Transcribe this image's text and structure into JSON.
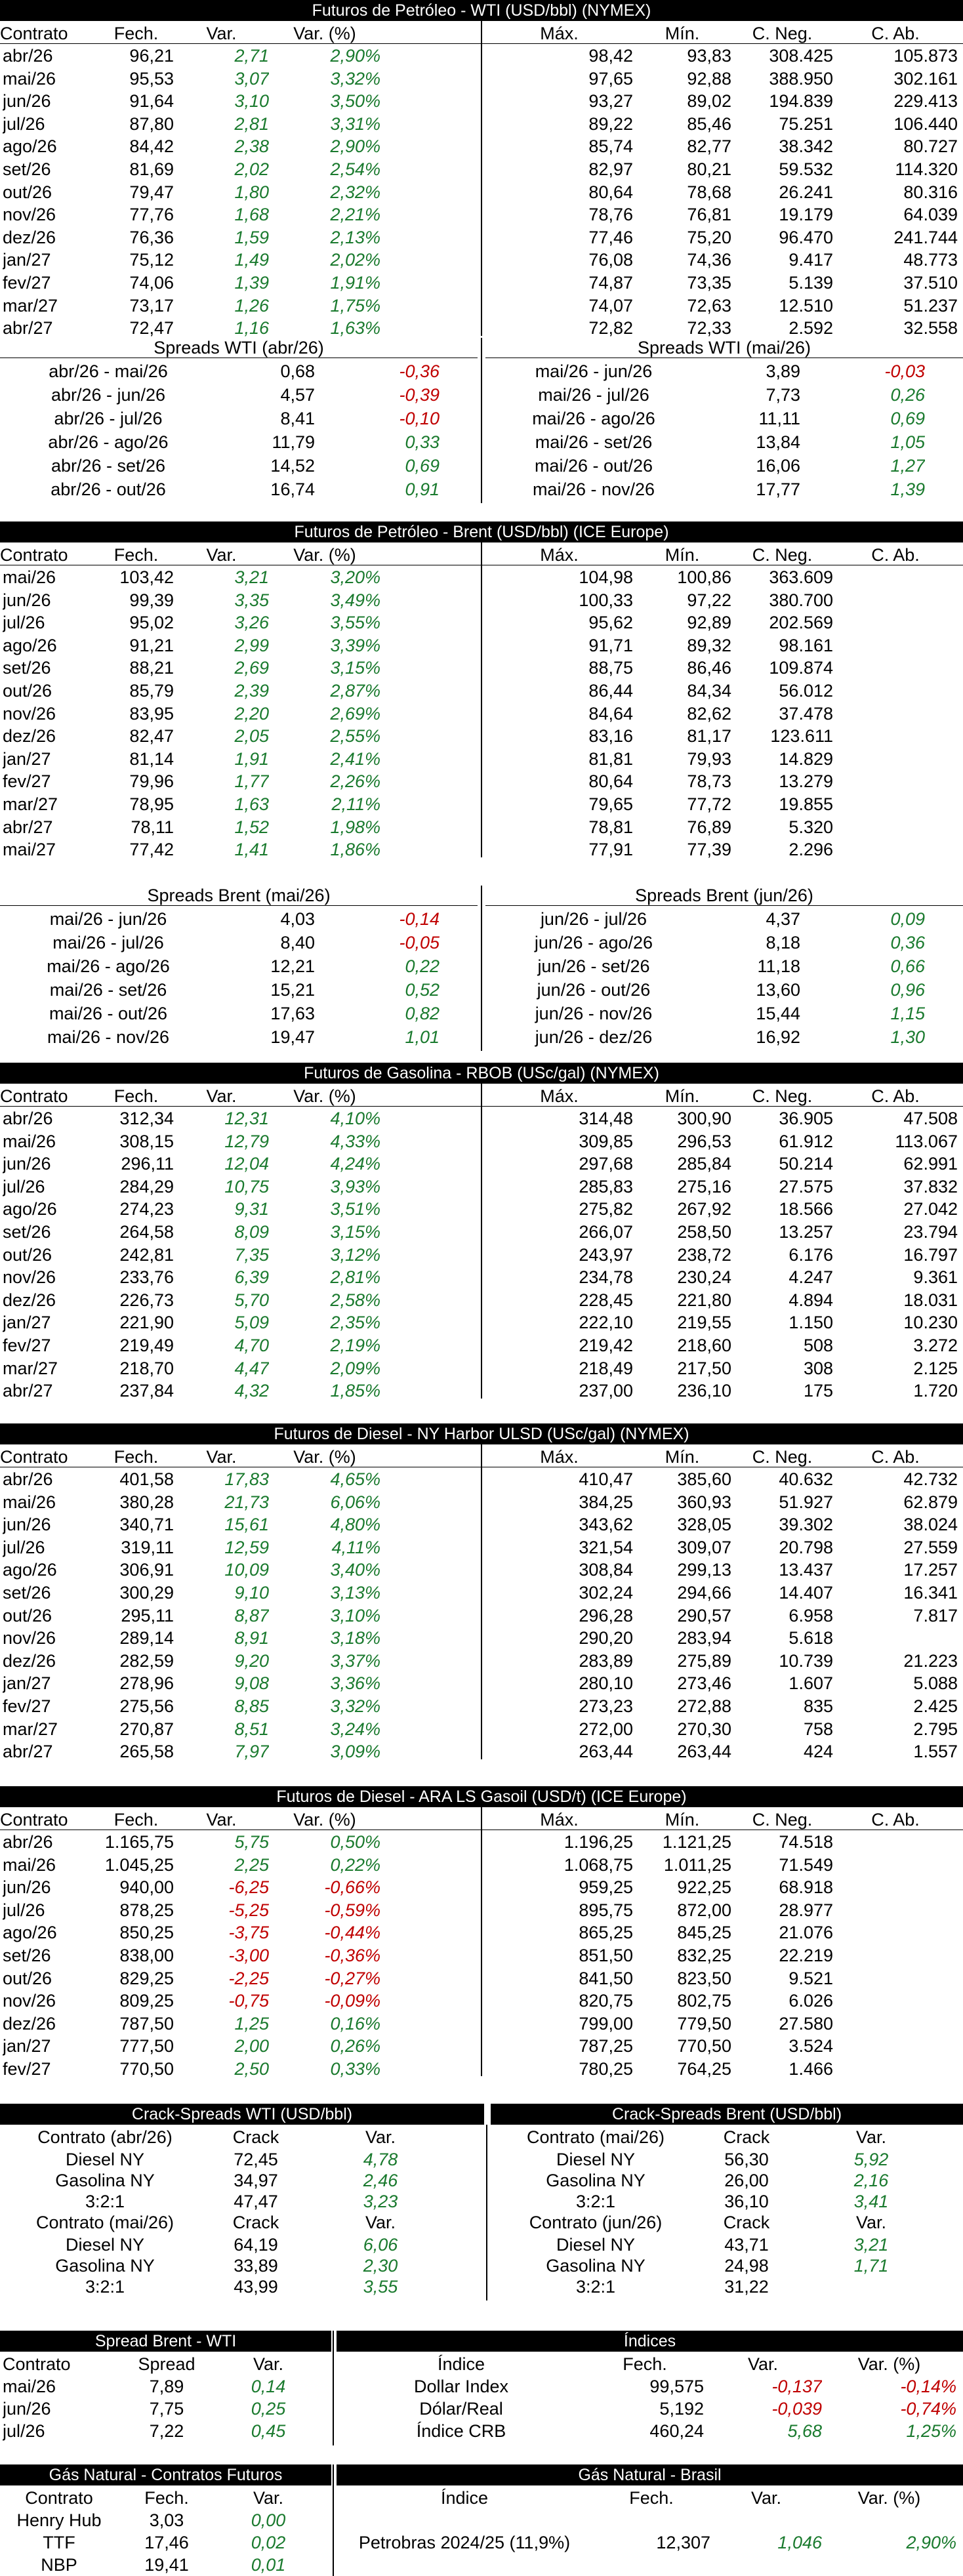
{
  "colors": {
    "up": "#1a7a2e",
    "down": "#c00000",
    "header_bg": "#000000"
  },
  "wti": {
    "title": "Futuros de Petróleo - WTI (USD/bbl) (NYMEX)",
    "headers": [
      "Contrato",
      "Fech.",
      "Var.",
      "Var. (%)",
      "Máx.",
      "Mín.",
      "C. Neg.",
      "C. Ab."
    ],
    "rows": [
      [
        "abr/26",
        "96,21",
        "2,71",
        "2,90%",
        "98,42",
        "93,83",
        "308.425",
        "105.873"
      ],
      [
        "mai/26",
        "95,53",
        "3,07",
        "3,32%",
        "97,65",
        "92,88",
        "388.950",
        "302.161"
      ],
      [
        "jun/26",
        "91,64",
        "3,10",
        "3,50%",
        "93,27",
        "89,02",
        "194.839",
        "229.413"
      ],
      [
        "jul/26",
        "87,80",
        "2,81",
        "3,31%",
        "89,22",
        "85,46",
        "75.251",
        "106.440"
      ],
      [
        "ago/26",
        "84,42",
        "2,38",
        "2,90%",
        "85,74",
        "82,77",
        "38.342",
        "80.727"
      ],
      [
        "set/26",
        "81,69",
        "2,02",
        "2,54%",
        "82,97",
        "80,21",
        "59.532",
        "114.320"
      ],
      [
        "out/26",
        "79,47",
        "1,80",
        "2,32%",
        "80,64",
        "78,68",
        "26.241",
        "80.316"
      ],
      [
        "nov/26",
        "77,76",
        "1,68",
        "2,21%",
        "78,76",
        "76,81",
        "19.179",
        "64.039"
      ],
      [
        "dez/26",
        "76,36",
        "1,59",
        "2,13%",
        "77,46",
        "75,20",
        "96.470",
        "241.744"
      ],
      [
        "jan/27",
        "75,12",
        "1,49",
        "2,02%",
        "76,08",
        "74,36",
        "9.417",
        "48.773"
      ],
      [
        "fev/27",
        "74,06",
        "1,39",
        "1,91%",
        "74,87",
        "73,35",
        "5.139",
        "37.510"
      ],
      [
        "mar/27",
        "73,17",
        "1,26",
        "1,75%",
        "74,07",
        "72,63",
        "12.510",
        "51.237"
      ],
      [
        "abr/27",
        "72,47",
        "1,16",
        "1,63%",
        "72,82",
        "72,33",
        "2.592",
        "32.558"
      ]
    ],
    "spreads_left": {
      "title": "Spreads WTI (abr/26)",
      "rows": [
        [
          "abr/26 - mai/26",
          "0,68",
          "-0,36"
        ],
        [
          "abr/26 - jun/26",
          "4,57",
          "-0,39"
        ],
        [
          "abr/26 - jul/26",
          "8,41",
          "-0,10"
        ],
        [
          "abr/26 - ago/26",
          "11,79",
          "0,33"
        ],
        [
          "abr/26 - set/26",
          "14,52",
          "0,69"
        ],
        [
          "abr/26 - out/26",
          "16,74",
          "0,91"
        ]
      ]
    },
    "spreads_right": {
      "title": "Spreads WTI (mai/26)",
      "rows": [
        [
          "mai/26 - jun/26",
          "3,89",
          "-0,03"
        ],
        [
          "mai/26 - jul/26",
          "7,73",
          "0,26"
        ],
        [
          "mai/26 - ago/26",
          "11,11",
          "0,69"
        ],
        [
          "mai/26 - set/26",
          "13,84",
          "1,05"
        ],
        [
          "mai/26 - out/26",
          "16,06",
          "1,27"
        ],
        [
          "mai/26 - nov/26",
          "17,77",
          "1,39"
        ]
      ]
    }
  },
  "brent": {
    "title": "Futuros de Petróleo - Brent (USD/bbl) (ICE Europe)",
    "headers": [
      "Contrato",
      "Fech.",
      "Var.",
      "Var. (%)",
      "Máx.",
      "Mín.",
      "C. Neg.",
      "C. Ab."
    ],
    "rows": [
      [
        "mai/26",
        "103,42",
        "3,21",
        "3,20%",
        "104,98",
        "100,86",
        "363.609",
        ""
      ],
      [
        "jun/26",
        "99,39",
        "3,35",
        "3,49%",
        "100,33",
        "97,22",
        "380.700",
        ""
      ],
      [
        "jul/26",
        "95,02",
        "3,26",
        "3,55%",
        "95,62",
        "92,89",
        "202.569",
        ""
      ],
      [
        "ago/26",
        "91,21",
        "2,99",
        "3,39%",
        "91,71",
        "89,32",
        "98.161",
        ""
      ],
      [
        "set/26",
        "88,21",
        "2,69",
        "3,15%",
        "88,75",
        "86,46",
        "109.874",
        ""
      ],
      [
        "out/26",
        "85,79",
        "2,39",
        "2,87%",
        "86,44",
        "84,34",
        "56.012",
        ""
      ],
      [
        "nov/26",
        "83,95",
        "2,20",
        "2,69%",
        "84,64",
        "82,62",
        "37.478",
        ""
      ],
      [
        "dez/26",
        "82,47",
        "2,05",
        "2,55%",
        "83,16",
        "81,17",
        "123.611",
        ""
      ],
      [
        "jan/27",
        "81,14",
        "1,91",
        "2,41%",
        "81,81",
        "79,93",
        "14.829",
        ""
      ],
      [
        "fev/27",
        "79,96",
        "1,77",
        "2,26%",
        "80,64",
        "78,73",
        "13.279",
        ""
      ],
      [
        "mar/27",
        "78,95",
        "1,63",
        "2,11%",
        "79,65",
        "77,72",
        "19.855",
        ""
      ],
      [
        "abr/27",
        "78,11",
        "1,52",
        "1,98%",
        "78,81",
        "76,89",
        "5.320",
        ""
      ],
      [
        "mai/27",
        "77,42",
        "1,41",
        "1,86%",
        "77,91",
        "77,39",
        "2.296",
        ""
      ]
    ],
    "spreads_left": {
      "title": "Spreads Brent (mai/26)",
      "rows": [
        [
          "mai/26 - jun/26",
          "4,03",
          "-0,14"
        ],
        [
          "mai/26 - jul/26",
          "8,40",
          "-0,05"
        ],
        [
          "mai/26 - ago/26",
          "12,21",
          "0,22"
        ],
        [
          "mai/26 - set/26",
          "15,21",
          "0,52"
        ],
        [
          "mai/26 - out/26",
          "17,63",
          "0,82"
        ],
        [
          "mai/26 - nov/26",
          "19,47",
          "1,01"
        ]
      ]
    },
    "spreads_right": {
      "title": "Spreads Brent (jun/26)",
      "rows": [
        [
          "jun/26 - jul/26",
          "4,37",
          "0,09"
        ],
        [
          "jun/26 - ago/26",
          "8,18",
          "0,36"
        ],
        [
          "jun/26 - set/26",
          "11,18",
          "0,66"
        ],
        [
          "jun/26 - out/26",
          "13,60",
          "0,96"
        ],
        [
          "jun/26 - nov/26",
          "15,44",
          "1,15"
        ],
        [
          "jun/26 - dez/26",
          "16,92",
          "1,30"
        ]
      ]
    }
  },
  "rbob": {
    "title": "Futuros de Gasolina - RBOB (USc/gal) (NYMEX)",
    "headers": [
      "Contrato",
      "Fech.",
      "Var.",
      "Var. (%)",
      "Máx.",
      "Mín.",
      "C. Neg.",
      "C. Ab."
    ],
    "rows": [
      [
        "abr/26",
        "312,34",
        "12,31",
        "4,10%",
        "314,48",
        "300,90",
        "36.905",
        "47.508"
      ],
      [
        "mai/26",
        "308,15",
        "12,79",
        "4,33%",
        "309,85",
        "296,53",
        "61.912",
        "113.067"
      ],
      [
        "jun/26",
        "296,11",
        "12,04",
        "4,24%",
        "297,68",
        "285,84",
        "50.214",
        "62.991"
      ],
      [
        "jul/26",
        "284,29",
        "10,75",
        "3,93%",
        "285,83",
        "275,16",
        "27.575",
        "37.832"
      ],
      [
        "ago/26",
        "274,23",
        "9,31",
        "3,51%",
        "275,82",
        "267,92",
        "18.566",
        "27.042"
      ],
      [
        "set/26",
        "264,58",
        "8,09",
        "3,15%",
        "266,07",
        "258,50",
        "13.257",
        "23.794"
      ],
      [
        "out/26",
        "242,81",
        "7,35",
        "3,12%",
        "243,97",
        "238,72",
        "6.176",
        "16.797"
      ],
      [
        "nov/26",
        "233,76",
        "6,39",
        "2,81%",
        "234,78",
        "230,24",
        "4.247",
        "9.361"
      ],
      [
        "dez/26",
        "226,73",
        "5,70",
        "2,58%",
        "228,45",
        "221,80",
        "4.894",
        "18.031"
      ],
      [
        "jan/27",
        "221,90",
        "5,09",
        "2,35%",
        "222,10",
        "219,55",
        "1.150",
        "10.230"
      ],
      [
        "fev/27",
        "219,49",
        "4,70",
        "2,19%",
        "219,42",
        "218,60",
        "508",
        "3.272"
      ],
      [
        "mar/27",
        "218,70",
        "4,47",
        "2,09%",
        "218,49",
        "217,50",
        "308",
        "2.125"
      ],
      [
        "abr/27",
        "237,84",
        "4,32",
        "1,85%",
        "237,00",
        "236,10",
        "175",
        "1.720"
      ]
    ]
  },
  "ulsd": {
    "title": "Futuros de Diesel - NY Harbor ULSD (USc/gal) (NYMEX)",
    "headers": [
      "Contrato",
      "Fech.",
      "Var.",
      "Var. (%)",
      "Máx.",
      "Mín.",
      "C. Neg.",
      "C. Ab."
    ],
    "rows": [
      [
        "abr/26",
        "401,58",
        "17,83",
        "4,65%",
        "410,47",
        "385,60",
        "40.632",
        "42.732"
      ],
      [
        "mai/26",
        "380,28",
        "21,73",
        "6,06%",
        "384,25",
        "360,93",
        "51.927",
        "62.879"
      ],
      [
        "jun/26",
        "340,71",
        "15,61",
        "4,80%",
        "343,62",
        "328,05",
        "39.302",
        "38.024"
      ],
      [
        "jul/26",
        "319,11",
        "12,59",
        "4,11%",
        "321,54",
        "309,07",
        "20.798",
        "27.559"
      ],
      [
        "ago/26",
        "306,91",
        "10,09",
        "3,40%",
        "308,84",
        "299,13",
        "13.437",
        "17.257"
      ],
      [
        "set/26",
        "300,29",
        "9,10",
        "3,13%",
        "302,24",
        "294,66",
        "14.407",
        "16.341"
      ],
      [
        "out/26",
        "295,11",
        "8,87",
        "3,10%",
        "296,28",
        "290,57",
        "6.958",
        "7.817"
      ],
      [
        "nov/26",
        "289,14",
        "8,91",
        "3,18%",
        "290,20",
        "283,94",
        "5.618",
        ""
      ],
      [
        "dez/26",
        "282,59",
        "9,20",
        "3,37%",
        "283,89",
        "275,89",
        "10.739",
        "21.223"
      ],
      [
        "jan/27",
        "278,96",
        "9,08",
        "3,36%",
        "280,10",
        "273,46",
        "1.607",
        "5.088"
      ],
      [
        "fev/27",
        "275,56",
        "8,85",
        "3,32%",
        "273,23",
        "272,88",
        "835",
        "2.425"
      ],
      [
        "mar/27",
        "270,87",
        "8,51",
        "3,24%",
        "272,00",
        "270,30",
        "758",
        "2.795"
      ],
      [
        "abr/27",
        "265,58",
        "7,97",
        "3,09%",
        "263,44",
        "263,44",
        "424",
        "1.557"
      ]
    ]
  },
  "gasoil": {
    "title": "Futuros de Diesel - ARA LS Gasoil (USD/t) (ICE Europe)",
    "headers": [
      "Contrato",
      "Fech.",
      "Var.",
      "Var. (%)",
      "Máx.",
      "Mín.",
      "C. Neg.",
      "C. Ab."
    ],
    "rows": [
      [
        "abr/26",
        "1.165,75",
        "5,75",
        "0,50%",
        "1.196,25",
        "1.121,25",
        "74.518",
        ""
      ],
      [
        "mai/26",
        "1.045,25",
        "2,25",
        "0,22%",
        "1.068,75",
        "1.011,25",
        "71.549",
        ""
      ],
      [
        "jun/26",
        "940,00",
        "-6,25",
        "-0,66%",
        "959,25",
        "922,25",
        "68.918",
        ""
      ],
      [
        "jul/26",
        "878,25",
        "-5,25",
        "-0,59%",
        "895,75",
        "872,00",
        "28.977",
        ""
      ],
      [
        "ago/26",
        "850,25",
        "-3,75",
        "-0,44%",
        "865,25",
        "845,25",
        "21.076",
        ""
      ],
      [
        "set/26",
        "838,00",
        "-3,00",
        "-0,36%",
        "851,50",
        "832,25",
        "22.219",
        ""
      ],
      [
        "out/26",
        "829,25",
        "-2,25",
        "-0,27%",
        "841,50",
        "823,50",
        "9.521",
        ""
      ],
      [
        "nov/26",
        "809,25",
        "-0,75",
        "-0,09%",
        "820,75",
        "802,75",
        "6.026",
        ""
      ],
      [
        "dez/26",
        "787,50",
        "1,25",
        "0,16%",
        "799,00",
        "779,50",
        "27.580",
        ""
      ],
      [
        "jan/27",
        "777,50",
        "2,00",
        "0,26%",
        "787,25",
        "770,50",
        "3.524",
        ""
      ],
      [
        "fev/27",
        "770,50",
        "2,50",
        "0,33%",
        "780,25",
        "764,25",
        "1.466",
        ""
      ]
    ]
  },
  "crack": {
    "left_title": "Crack-Spreads WTI (USD/bbl)",
    "right_title": "Crack-Spreads Brent (USD/bbl)",
    "col_crack": "Crack",
    "col_var": "Var.",
    "left_blocks": [
      {
        "label": "Contrato (abr/26)",
        "rows": [
          [
            "Diesel NY",
            "72,45",
            "4,78"
          ],
          [
            "Gasolina NY",
            "34,97",
            "2,46"
          ],
          [
            "3:2:1",
            "47,47",
            "3,23"
          ]
        ]
      },
      {
        "label": "Contrato (mai/26)",
        "rows": [
          [
            "Diesel NY",
            "64,19",
            "6,06"
          ],
          [
            "Gasolina NY",
            "33,89",
            "2,30"
          ],
          [
            "3:2:1",
            "43,99",
            "3,55"
          ]
        ]
      }
    ],
    "right_blocks": [
      {
        "label": "Contrato (mai/26)",
        "rows": [
          [
            "Diesel NY",
            "56,30",
            "5,92"
          ],
          [
            "Gasolina NY",
            "26,00",
            "2,16"
          ],
          [
            "3:2:1",
            "36,10",
            "3,41"
          ]
        ]
      },
      {
        "label": "Contrato (jun/26)",
        "rows": [
          [
            "Diesel NY",
            "43,71",
            "3,21"
          ],
          [
            "Gasolina NY",
            "24,98",
            "1,71"
          ],
          [
            "3:2:1",
            "31,22",
            ""
          ]
        ]
      }
    ]
  },
  "spread_bw": {
    "title": "Spread Brent - WTI",
    "headers": [
      "Contrato",
      "Spread",
      "Var."
    ],
    "rows": [
      [
        "mai/26",
        "7,89",
        "0,14"
      ],
      [
        "jun/26",
        "7,75",
        "0,25"
      ],
      [
        "jul/26",
        "7,22",
        "0,45"
      ]
    ]
  },
  "indices": {
    "title": "Índices",
    "headers": [
      "Índice",
      "Fech.",
      "Var.",
      "Var. (%)"
    ],
    "rows": [
      [
        "Dollar Index",
        "99,575",
        "-0,137",
        "-0,14%"
      ],
      [
        "Dólar/Real",
        "5,192",
        "-0,039",
        "-0,74%"
      ],
      [
        "Índice CRB",
        "460,24",
        "5,68",
        "1,25%"
      ]
    ]
  },
  "gas_fut": {
    "title": "Gás Natural - Contratos Futuros",
    "headers": [
      "Contrato",
      "Fech.",
      "Var."
    ],
    "rows": [
      [
        "Henry Hub",
        "3,03",
        "0,00"
      ],
      [
        "TTF",
        "17,46",
        "0,02"
      ],
      [
        "NBP",
        "19,41",
        "0,01"
      ]
    ]
  },
  "gas_br": {
    "title": "Gás Natural - Brasil",
    "headers": [
      "Índice",
      "Fech.",
      "Var.",
      "Var. (%)"
    ],
    "rows": [
      [
        "Petrobras 2024/25 (11,9%)",
        "12,307",
        "1,046",
        "2,90%"
      ]
    ]
  }
}
